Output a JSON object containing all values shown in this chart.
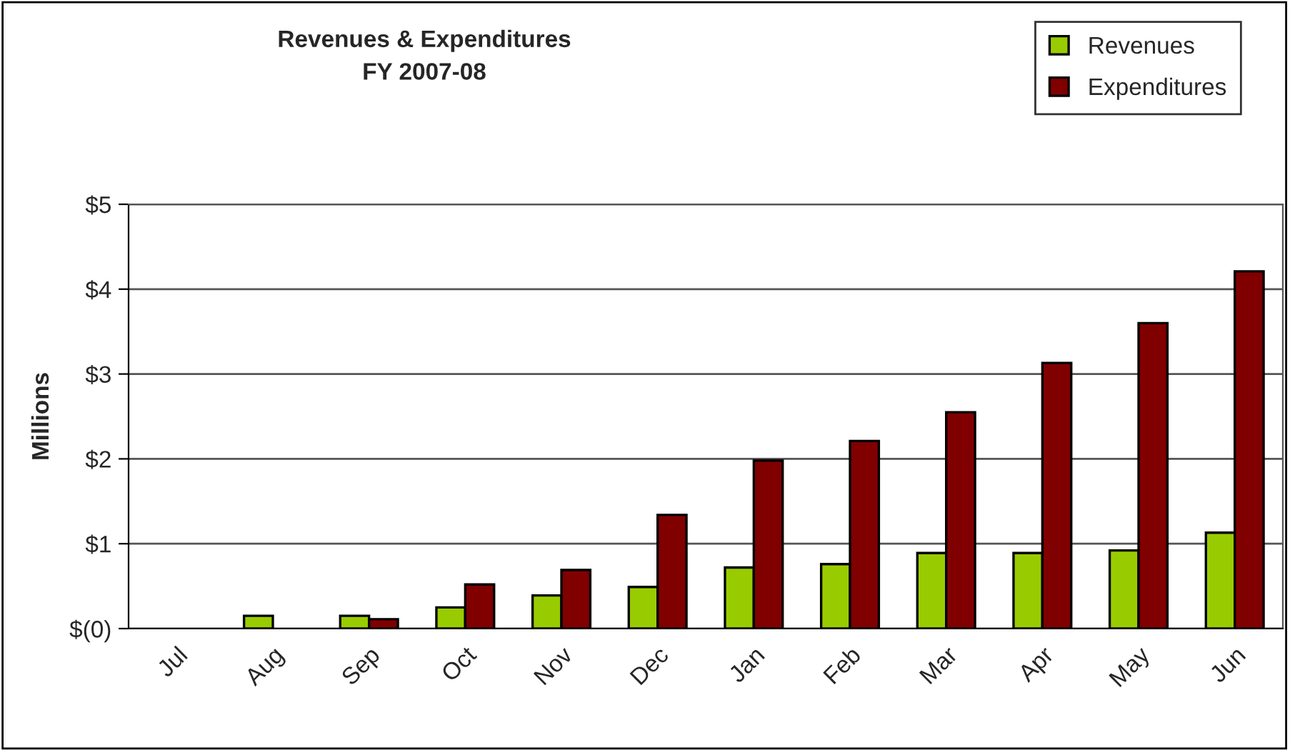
{
  "chart_data": {
    "type": "bar",
    "title": "Revenues & Expenditures\nFY 2007-08",
    "ylabel": "Millions",
    "categories": [
      "Jul",
      "Aug",
      "Sep",
      "Oct",
      "Nov",
      "Dec",
      "Jan",
      "Feb",
      "Mar",
      "Apr",
      "May",
      "Jun"
    ],
    "series": [
      {
        "name": "Revenues",
        "color": "#99cc00",
        "values": [
          null,
          0.15,
          0.15,
          0.25,
          0.39,
          0.49,
          0.72,
          0.76,
          0.89,
          0.89,
          0.92,
          1.13
        ]
      },
      {
        "name": "Expenditures",
        "color": "#800000",
        "values": [
          null,
          null,
          0.11,
          0.52,
          0.69,
          1.34,
          1.98,
          2.21,
          2.55,
          3.13,
          3.6,
          4.21
        ]
      }
    ],
    "ylim": [
      0,
      5
    ],
    "yticks": [
      {
        "value": 0,
        "label": "$(0)"
      },
      {
        "value": 1,
        "label": "$1"
      },
      {
        "value": 2,
        "label": "$2"
      },
      {
        "value": 3,
        "label": "$3"
      },
      {
        "value": 4,
        "label": "$4"
      },
      {
        "value": 5,
        "label": "$5"
      }
    ],
    "grid": "y",
    "legend": "top right"
  }
}
